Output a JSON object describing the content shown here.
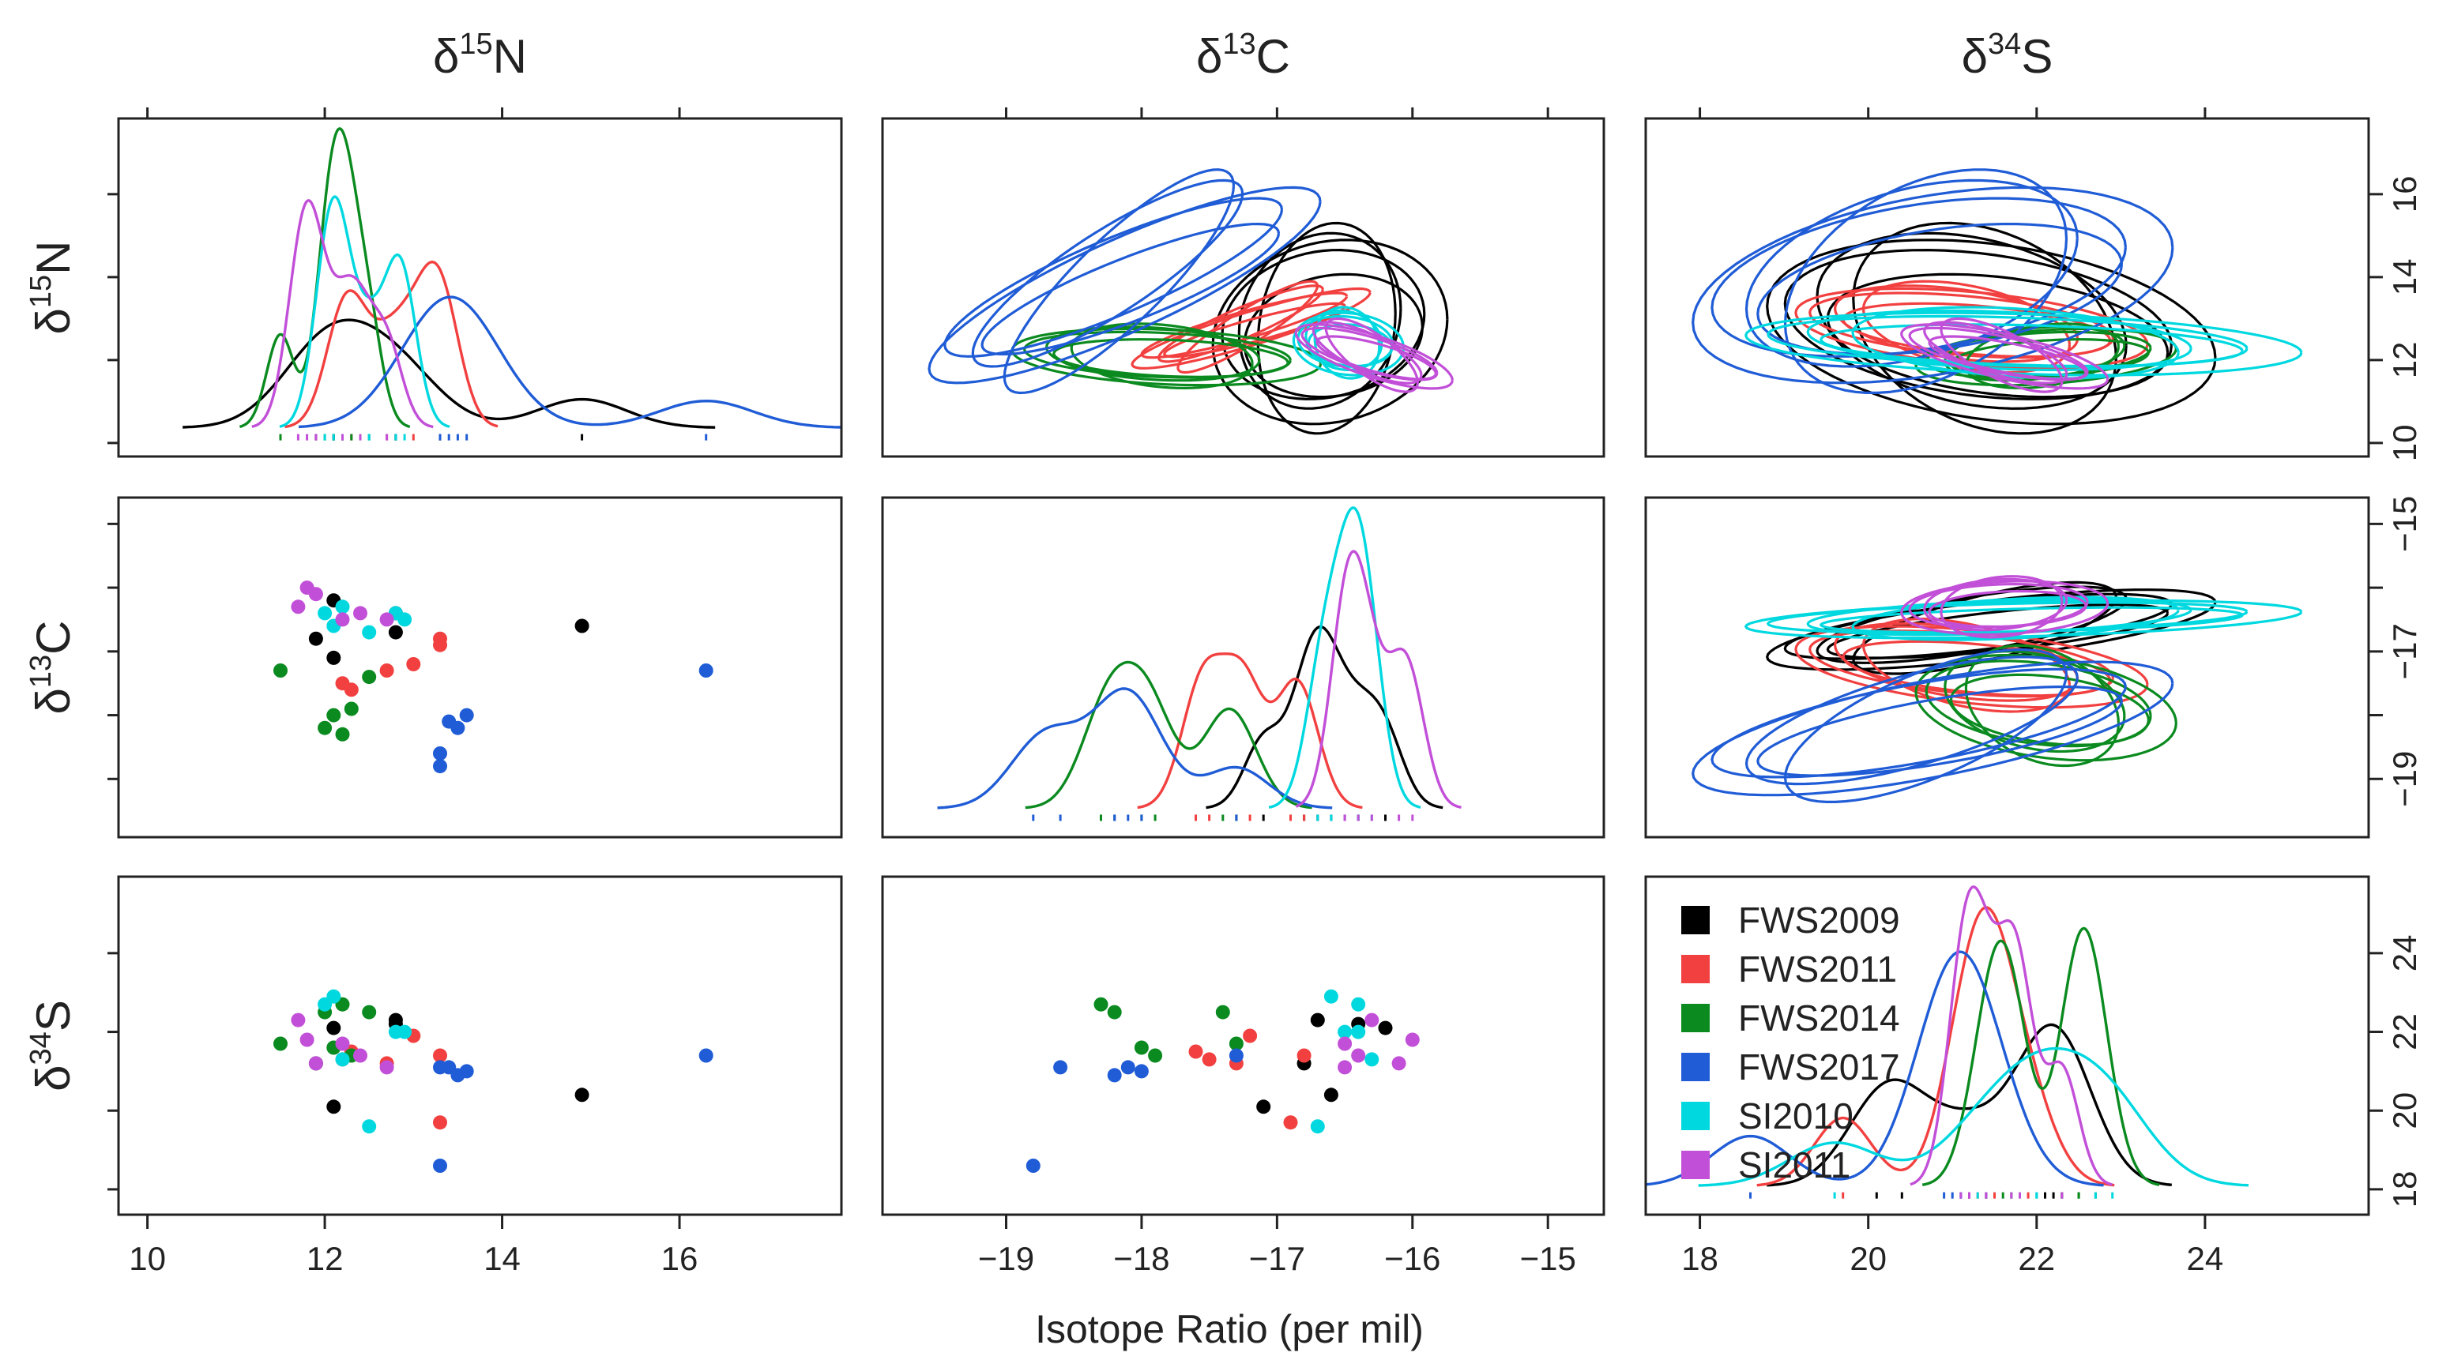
{
  "chart_data": {
    "type": "scatter",
    "subtype": "pairs-matrix",
    "title": "",
    "xlabel": "Isotope Ratio (per mil)",
    "variables": [
      {
        "key": "N",
        "base": "δ",
        "sup": "15",
        "el": "N",
        "range": [
          10,
          17.5
        ],
        "ticks": [
          10,
          12,
          14,
          16
        ]
      },
      {
        "key": "C",
        "base": "δ",
        "sup": "13",
        "el": "C",
        "range": [
          -19.7,
          -14.8
        ],
        "ticks": [
          -19,
          -18,
          -17,
          -16,
          -15
        ],
        "axis_ticks_right": [
          -15,
          -17,
          -19
        ]
      },
      {
        "key": "S",
        "base": "δ",
        "sup": "34",
        "el": "S",
        "range": [
          17.7,
          25.6
        ],
        "ticks": [
          18,
          20,
          22,
          24
        ]
      }
    ],
    "legend": {
      "position": "lower-right panel, top-left",
      "entries": [
        {
          "name": "FWS2009",
          "color": "#000000"
        },
        {
          "name": "FWS2011",
          "color": "#f24040"
        },
        {
          "name": "FWS2014",
          "color": "#0a8a1f"
        },
        {
          "name": "FWS2017",
          "color": "#1f5cd6"
        },
        {
          "name": "SI2010",
          "color": "#00d8e0"
        },
        {
          "name": "SI2011",
          "color": "#c24fd8"
        }
      ]
    },
    "series": [
      {
        "name": "FWS2009",
        "color": "#000000",
        "points": [
          {
            "N": 11.9,
            "C": -16.8,
            "S": 21.2
          },
          {
            "N": 12.1,
            "C": -16.2,
            "S": 22.1
          },
          {
            "N": 12.1,
            "C": -17.1,
            "S": 20.1
          },
          {
            "N": 12.8,
            "C": -16.7,
            "S": 22.3
          },
          {
            "N": 12.8,
            "C": -16.4,
            "S": 22.2
          },
          {
            "N": 14.9,
            "C": -16.6,
            "S": 20.4
          }
        ]
      },
      {
        "name": "FWS2011",
        "color": "#f24040",
        "points": [
          {
            "N": 12.2,
            "C": -17.5,
            "S": 21.3
          },
          {
            "N": 12.3,
            "C": -17.6,
            "S": 21.5
          },
          {
            "N": 12.7,
            "C": -17.3,
            "S": 21.2
          },
          {
            "N": 13.0,
            "C": -17.2,
            "S": 21.9
          },
          {
            "N": 13.3,
            "C": -16.8,
            "S": 21.4
          },
          {
            "N": 13.3,
            "C": -16.9,
            "S": 19.7
          }
        ]
      },
      {
        "name": "FWS2014",
        "color": "#0a8a1f",
        "points": [
          {
            "N": 11.5,
            "C": -17.3,
            "S": 21.7
          },
          {
            "N": 12.0,
            "C": -18.2,
            "S": 22.5
          },
          {
            "N": 12.1,
            "C": -18.0,
            "S": 21.6
          },
          {
            "N": 12.2,
            "C": -18.3,
            "S": 22.7
          },
          {
            "N": 12.3,
            "C": -17.9,
            "S": 21.4
          },
          {
            "N": 12.5,
            "C": -17.4,
            "S": 22.5
          }
        ]
      },
      {
        "name": "FWS2017",
        "color": "#1f5cd6",
        "points": [
          {
            "N": 13.3,
            "C": -18.8,
            "S": 18.6
          },
          {
            "N": 13.3,
            "C": -18.6,
            "S": 21.1
          },
          {
            "N": 13.4,
            "C": -18.1,
            "S": 21.1
          },
          {
            "N": 13.5,
            "C": -18.2,
            "S": 20.9
          },
          {
            "N": 13.6,
            "C": -18.0,
            "S": 21.0
          },
          {
            "N": 16.3,
            "C": -17.3,
            "S": 21.4
          }
        ]
      },
      {
        "name": "SI2010",
        "color": "#00d8e0",
        "points": [
          {
            "N": 12.0,
            "C": -16.4,
            "S": 22.7
          },
          {
            "N": 12.1,
            "C": -16.6,
            "S": 22.9
          },
          {
            "N": 12.2,
            "C": -16.3,
            "S": 21.3
          },
          {
            "N": 12.5,
            "C": -16.7,
            "S": 19.6
          },
          {
            "N": 12.8,
            "C": -16.4,
            "S": 22.0
          },
          {
            "N": 12.9,
            "C": -16.5,
            "S": 22.0
          }
        ]
      },
      {
        "name": "SI2011",
        "color": "#c24fd8",
        "points": [
          {
            "N": 11.7,
            "C": -16.3,
            "S": 22.3
          },
          {
            "N": 11.8,
            "C": -16.0,
            "S": 21.8
          },
          {
            "N": 11.9,
            "C": -16.1,
            "S": 21.2
          },
          {
            "N": 12.2,
            "C": -16.5,
            "S": 21.7
          },
          {
            "N": 12.4,
            "C": -16.4,
            "S": 21.4
          },
          {
            "N": 12.7,
            "C": -16.5,
            "S": 21.1
          }
        ]
      }
    ]
  }
}
